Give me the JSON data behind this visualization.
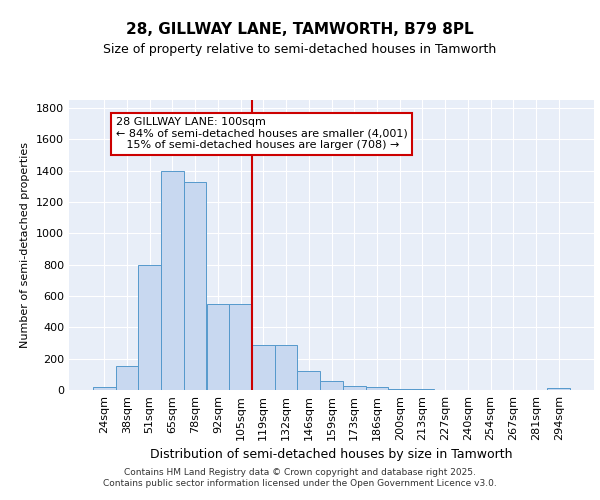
{
  "title1": "28, GILLWAY LANE, TAMWORTH, B79 8PL",
  "title2": "Size of property relative to semi-detached houses in Tamworth",
  "xlabel": "Distribution of semi-detached houses by size in Tamworth",
  "ylabel": "Number of semi-detached properties",
  "categories": [
    "24sqm",
    "38sqm",
    "51sqm",
    "65sqm",
    "78sqm",
    "92sqm",
    "105sqm",
    "119sqm",
    "132sqm",
    "146sqm",
    "159sqm",
    "173sqm",
    "186sqm",
    "200sqm",
    "213sqm",
    "227sqm",
    "240sqm",
    "254sqm",
    "267sqm",
    "281sqm",
    "294sqm"
  ],
  "values": [
    20,
    150,
    800,
    1400,
    1330,
    550,
    550,
    290,
    290,
    120,
    55,
    25,
    20,
    5,
    5,
    3,
    2,
    2,
    2,
    2,
    10
  ],
  "bar_color": "#c8d8f0",
  "bar_edge_color": "#5599cc",
  "vline_color": "#cc0000",
  "vline_pos": 6.5,
  "annotation_line1": "28 GILLWAY LANE: 100sqm",
  "annotation_line2": "← 84% of semi-detached houses are smaller (4,001)",
  "annotation_line3": "   15% of semi-detached houses are larger (708) →",
  "annotation_box_color": "#ffffff",
  "annotation_box_edge": "#cc0000",
  "background_color": "#e8eef8",
  "footer_text": "Contains HM Land Registry data © Crown copyright and database right 2025.\nContains public sector information licensed under the Open Government Licence v3.0.",
  "ylim": [
    0,
    1850
  ],
  "yticks": [
    0,
    200,
    400,
    600,
    800,
    1000,
    1200,
    1400,
    1600,
    1800
  ],
  "title1_fontsize": 11,
  "title2_fontsize": 9,
  "ylabel_fontsize": 8,
  "xlabel_fontsize": 9,
  "tick_fontsize": 8,
  "footer_fontsize": 6.5,
  "ann_fontsize": 8
}
